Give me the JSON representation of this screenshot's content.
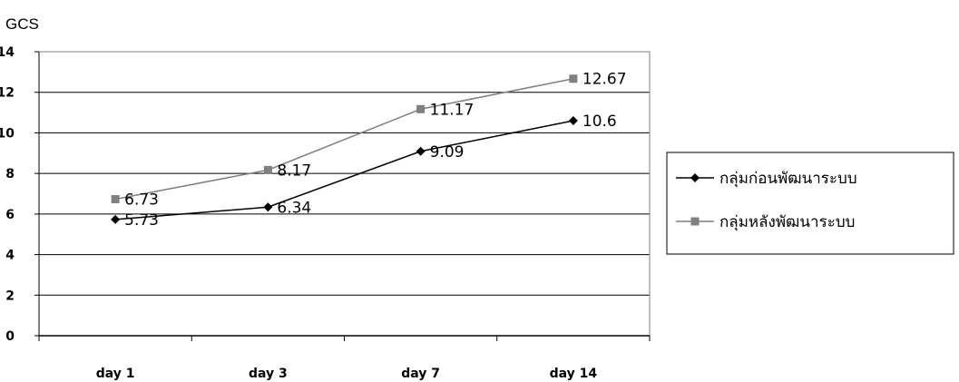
{
  "chart_data": {
    "type": "line",
    "ylabel": "GCS",
    "categories": [
      "day 1",
      "day 3",
      "day 7",
      "day 14"
    ],
    "ylim": [
      0,
      14
    ],
    "yticks": [
      0,
      2,
      4,
      6,
      8,
      10,
      12,
      14
    ],
    "grid": true,
    "legend_position": "right",
    "series": [
      {
        "name": "กลุ่มก่อนพัฒนาระบบ",
        "values": [
          5.73,
          6.34,
          9.09,
          10.6
        ],
        "labels": [
          "5.73",
          "6.34",
          "9.09",
          "10.6"
        ],
        "color": "#000000",
        "marker": "diamond"
      },
      {
        "name": "กลุ่มหลังพัฒนาระบบ",
        "values": [
          6.73,
          8.17,
          11.17,
          12.67
        ],
        "labels": [
          "6.73",
          "8.17",
          "11.17",
          "12.67"
        ],
        "color": "#808080",
        "marker": "square"
      }
    ]
  }
}
